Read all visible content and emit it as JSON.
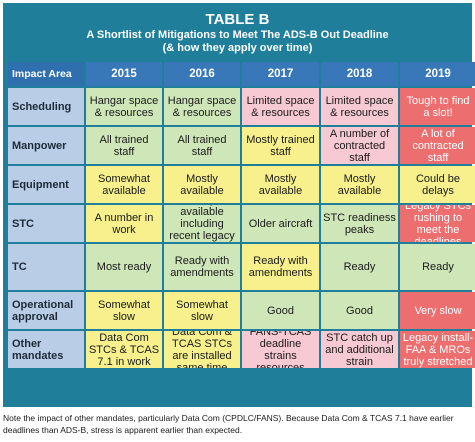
{
  "table": {
    "title": "TABLE B",
    "subtitle_line1": "A Shortlist of Mitigations to Meet The ADS-B Out Deadline",
    "subtitle_line2": "(& how they apply over time)",
    "header_area": "Impact Area",
    "years": [
      "2015",
      "2016",
      "2017",
      "2018",
      "2019"
    ],
    "colors": {
      "green": "#cfe7b8",
      "yellow": "#f7f08d",
      "pink": "#f7c9d2",
      "red": "#ec6e6e",
      "header_blue": "#3978b8",
      "panel_teal": "#1f7f9b"
    },
    "rows": [
      {
        "area": "Scheduling",
        "cells": [
          {
            "text": "Hangar space & resources",
            "color": "green"
          },
          {
            "text": "Hangar space & resources",
            "color": "green"
          },
          {
            "text": "Limited space & resources",
            "color": "pink"
          },
          {
            "text": "Limited space & resources",
            "color": "pink"
          },
          {
            "text": "Tough to find a slot!",
            "color": "red"
          }
        ]
      },
      {
        "area": "Manpower",
        "cells": [
          {
            "text": "All trained staff",
            "color": "green"
          },
          {
            "text": "All trained staff",
            "color": "green"
          },
          {
            "text": "Mostly trained staff",
            "color": "yellow"
          },
          {
            "text": "A number of contracted staff",
            "color": "pink"
          },
          {
            "text": "A lot of contracted staff",
            "color": "red"
          }
        ]
      },
      {
        "area": "Equipment",
        "cells": [
          {
            "text": "Somewhat available",
            "color": "yellow"
          },
          {
            "text": "Mostly available",
            "color": "yellow"
          },
          {
            "text": "Mostly available",
            "color": "yellow"
          },
          {
            "text": "Mostly available",
            "color": "yellow"
          },
          {
            "text": "Could be delays",
            "color": "yellow"
          }
        ]
      },
      {
        "area": "STC",
        "cells": [
          {
            "text": "A number in work",
            "color": "yellow"
          },
          {
            "text": "Many available including recent legacy aircraft",
            "color": "green"
          },
          {
            "text": "Older aircraft",
            "color": "green"
          },
          {
            "text": "STC readiness peaks",
            "color": "green"
          },
          {
            "text": "Legacy STCs rushing to meet the deadlines",
            "color": "red"
          }
        ]
      },
      {
        "area": "TC",
        "cells": [
          {
            "text": "Most ready",
            "color": "green"
          },
          {
            "text": "Ready with amendments",
            "color": "green"
          },
          {
            "text": "Ready with amendments",
            "color": "yellow"
          },
          {
            "text": "Ready",
            "color": "green"
          },
          {
            "text": "Ready",
            "color": "green"
          }
        ]
      },
      {
        "area": "Operational approval",
        "cells": [
          {
            "text": "Somewhat slow",
            "color": "yellow"
          },
          {
            "text": "Somewhat slow",
            "color": "yellow"
          },
          {
            "text": "Good",
            "color": "green"
          },
          {
            "text": "Good",
            "color": "green"
          },
          {
            "text": "Very slow",
            "color": "red"
          }
        ]
      },
      {
        "area": "Other mandates",
        "cells": [
          {
            "text": "Data Com STCs & TCAS 7.1 in work",
            "color": "yellow"
          },
          {
            "text": "Data Com & TCAS STCs are installed same time",
            "color": "yellow"
          },
          {
            "text": "FANS-TCAS deadline strains resources",
            "color": "pink"
          },
          {
            "text": "STC catch up and additional strain",
            "color": "pink"
          },
          {
            "text": "Legacy install-FAA & MROs truly stretched",
            "color": "red"
          }
        ]
      }
    ]
  },
  "caption_line1": "Note the impact of other mandates, particularly Data Com (CPDLC/FANS). Because Data Com & TCAS 7.1 have earlier",
  "caption_line2": "deadlines than ADS-B, stress is apparent earlier than expected."
}
